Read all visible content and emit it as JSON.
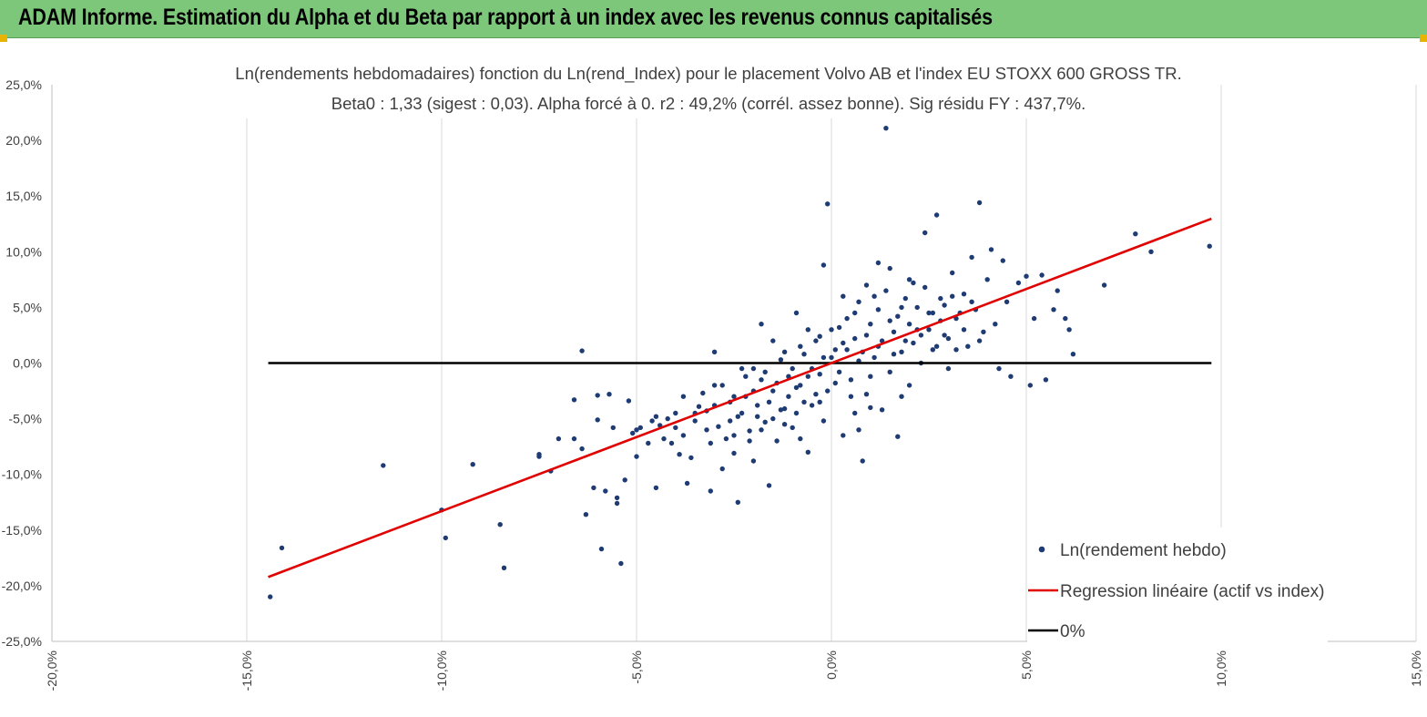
{
  "banner": {
    "title": "ADAM Informe. Estimation du Alpha et du Beta par rapport à un index avec les revenus connus capitalisés"
  },
  "colors": {
    "banner_bg": "#7dc77b",
    "points": "#1f3b73",
    "regression": "#e00000",
    "zero_line": "#000000",
    "grid": "#d9d9d9",
    "corner_marks": "#e9b400"
  },
  "chart_data": {
    "type": "scatter",
    "title_line1": "Ln(rendements hebdomadaires) fonction du Ln(rend_Index) pour le placement Volvo AB et l'index EU STOXX 600 GROSS TR.",
    "title_line2": "Beta0 : 1,33  (sigest : 0,03).  Alpha forcé à 0. r2 : 49,2% (corrél. assez bonne). Sig résidu FY : 437,7%.",
    "xlim": [
      -0.2,
      0.15
    ],
    "ylim": [
      -0.25,
      0.25
    ],
    "x_ticks": [
      -0.2,
      -0.15,
      -0.1,
      -0.05,
      0.0,
      0.05,
      0.1,
      0.15
    ],
    "y_ticks": [
      -0.25,
      -0.2,
      -0.15,
      -0.1,
      -0.05,
      0.0,
      0.05,
      0.1,
      0.15,
      0.2,
      0.25
    ],
    "x_tick_labels": [
      "-20,0%",
      "-15,0%",
      "-10,0%",
      "-5,0%",
      "0,0%",
      "5,0%",
      "10,0%",
      "15,0%"
    ],
    "y_tick_labels": [
      "-25,0%",
      "-20,0%",
      "-15,0%",
      "-10,0%",
      "-5,0%",
      "0,0%",
      "5,0%",
      "10,0%",
      "15,0%",
      "20,0%",
      "25,0%"
    ],
    "grid": "vertical",
    "legend_position": "bottom-right",
    "series": [
      {
        "name": "Ln(rendement hebdo)",
        "kind": "scatter",
        "points": [
          [
            -0.144,
            -0.21
          ],
          [
            -0.141,
            -0.166
          ],
          [
            -0.115,
            -0.092
          ],
          [
            -0.1,
            -0.132
          ],
          [
            -0.099,
            -0.157
          ],
          [
            -0.092,
            -0.091
          ],
          [
            -0.085,
            -0.145
          ],
          [
            -0.084,
            -0.184
          ],
          [
            -0.075,
            -0.082
          ],
          [
            -0.075,
            -0.084
          ],
          [
            -0.072,
            -0.097
          ],
          [
            -0.07,
            -0.068
          ],
          [
            -0.066,
            -0.033
          ],
          [
            -0.066,
            -0.068
          ],
          [
            -0.064,
            0.011
          ],
          [
            -0.064,
            -0.077
          ],
          [
            -0.063,
            -0.136
          ],
          [
            -0.061,
            -0.112
          ],
          [
            -0.06,
            -0.029
          ],
          [
            -0.06,
            -0.051
          ],
          [
            -0.059,
            -0.167
          ],
          [
            -0.058,
            -0.115
          ],
          [
            -0.057,
            -0.028
          ],
          [
            -0.056,
            -0.058
          ],
          [
            -0.055,
            -0.121
          ],
          [
            -0.055,
            -0.126
          ],
          [
            -0.054,
            -0.18
          ],
          [
            -0.053,
            -0.105
          ],
          [
            -0.052,
            -0.034
          ],
          [
            -0.051,
            -0.063
          ],
          [
            -0.05,
            -0.084
          ],
          [
            -0.049,
            -0.058
          ],
          [
            -0.047,
            -0.072
          ],
          [
            -0.046,
            -0.052
          ],
          [
            -0.045,
            -0.112
          ],
          [
            -0.044,
            -0.056
          ],
          [
            -0.043,
            -0.068
          ],
          [
            -0.042,
            -0.05
          ],
          [
            -0.041,
            -0.072
          ],
          [
            -0.04,
            -0.045
          ],
          [
            -0.039,
            -0.082
          ],
          [
            -0.038,
            -0.065
          ],
          [
            -0.037,
            -0.108
          ],
          [
            -0.036,
            -0.085
          ],
          [
            -0.035,
            -0.052
          ],
          [
            -0.034,
            -0.039
          ],
          [
            -0.033,
            -0.027
          ],
          [
            -0.032,
            -0.043
          ],
          [
            -0.031,
            -0.115
          ],
          [
            -0.031,
            -0.072
          ],
          [
            -0.03,
            -0.02
          ],
          [
            -0.029,
            -0.057
          ],
          [
            -0.028,
            -0.095
          ],
          [
            -0.027,
            -0.068
          ],
          [
            -0.026,
            -0.035
          ],
          [
            -0.025,
            -0.081
          ],
          [
            -0.024,
            -0.125
          ],
          [
            -0.024,
            -0.048
          ],
          [
            -0.023,
            -0.005
          ],
          [
            -0.022,
            -0.03
          ],
          [
            -0.021,
            -0.061
          ],
          [
            -0.02,
            -0.088
          ],
          [
            -0.019,
            -0.038
          ],
          [
            -0.018,
            -0.015
          ],
          [
            -0.017,
            -0.053
          ],
          [
            -0.016,
            -0.11
          ],
          [
            -0.015,
            -0.025
          ],
          [
            -0.014,
            -0.07
          ],
          [
            -0.013,
            0.003
          ],
          [
            -0.012,
            -0.041
          ],
          [
            -0.011,
            -0.012
          ],
          [
            -0.01,
            -0.058
          ],
          [
            -0.009,
            -0.022
          ],
          [
            -0.008,
            0.015
          ],
          [
            -0.007,
            -0.035
          ],
          [
            -0.006,
            -0.08
          ],
          [
            -0.005,
            -0.005
          ],
          [
            -0.004,
            -0.028
          ],
          [
            -0.003,
            0.024
          ],
          [
            -0.002,
            -0.052
          ],
          [
            -0.001,
            0.143
          ],
          [
            0.0,
            0.005
          ],
          [
            0.001,
            -0.018
          ],
          [
            0.002,
            0.032
          ],
          [
            0.003,
            -0.065
          ],
          [
            0.004,
            0.012
          ],
          [
            0.005,
            -0.03
          ],
          [
            0.006,
            0.045
          ],
          [
            0.007,
            0.002
          ],
          [
            0.008,
            -0.088
          ],
          [
            0.009,
            0.025
          ],
          [
            0.01,
            -0.012
          ],
          [
            0.011,
            0.06
          ],
          [
            0.012,
            0.015
          ],
          [
            0.013,
            -0.042
          ],
          [
            0.014,
            0.211
          ],
          [
            0.015,
            0.038
          ],
          [
            0.016,
            0.008
          ],
          [
            0.017,
            -0.066
          ],
          [
            0.018,
            0.05
          ],
          [
            0.019,
            0.02
          ],
          [
            0.02,
            -0.02
          ],
          [
            0.021,
            0.072
          ],
          [
            0.022,
            0.03
          ],
          [
            0.023,
            0.0
          ],
          [
            0.024,
            0.117
          ],
          [
            0.025,
            0.045
          ],
          [
            0.026,
            0.012
          ],
          [
            0.027,
            0.133
          ],
          [
            0.028,
            0.058
          ],
          [
            0.029,
            0.025
          ],
          [
            0.03,
            -0.005
          ],
          [
            0.031,
            0.081
          ],
          [
            0.032,
            0.04
          ],
          [
            0.034,
            0.062
          ],
          [
            0.035,
            0.015
          ],
          [
            0.036,
            0.095
          ],
          [
            0.037,
            0.048
          ],
          [
            0.038,
            0.144
          ],
          [
            0.039,
            0.028
          ],
          [
            0.04,
            0.075
          ],
          [
            0.041,
            0.102
          ],
          [
            0.042,
            0.035
          ],
          [
            0.043,
            -0.005
          ],
          [
            0.044,
            0.092
          ],
          [
            0.045,
            0.055
          ],
          [
            0.046,
            -0.012
          ],
          [
            0.048,
            0.072
          ],
          [
            0.05,
            0.078
          ],
          [
            0.051,
            -0.02
          ],
          [
            0.052,
            0.04
          ],
          [
            0.054,
            0.079
          ],
          [
            0.055,
            -0.015
          ],
          [
            0.057,
            0.048
          ],
          [
            0.058,
            0.065
          ],
          [
            0.06,
            0.04
          ],
          [
            0.061,
            0.03
          ],
          [
            0.062,
            0.008
          ],
          [
            0.07,
            0.07
          ],
          [
            0.078,
            0.116
          ],
          [
            0.082,
            0.1
          ],
          [
            0.097,
            0.105
          ],
          [
            -0.05,
            -0.06
          ],
          [
            -0.045,
            -0.048
          ],
          [
            -0.04,
            -0.058
          ],
          [
            -0.038,
            -0.03
          ],
          [
            -0.035,
            -0.045
          ],
          [
            -0.032,
            -0.06
          ],
          [
            -0.03,
            -0.038
          ],
          [
            -0.028,
            -0.02
          ],
          [
            -0.026,
            -0.052
          ],
          [
            -0.025,
            -0.03
          ],
          [
            -0.023,
            -0.045
          ],
          [
            -0.022,
            -0.012
          ],
          [
            -0.021,
            -0.07
          ],
          [
            -0.02,
            -0.025
          ],
          [
            -0.019,
            -0.048
          ],
          [
            -0.018,
            -0.06
          ],
          [
            -0.017,
            -0.008
          ],
          [
            -0.016,
            -0.035
          ],
          [
            -0.015,
            -0.05
          ],
          [
            -0.014,
            -0.018
          ],
          [
            -0.013,
            -0.042
          ],
          [
            -0.012,
            0.01
          ],
          [
            -0.011,
            -0.03
          ],
          [
            -0.01,
            -0.005
          ],
          [
            -0.009,
            -0.045
          ],
          [
            -0.008,
            -0.02
          ],
          [
            -0.007,
            0.008
          ],
          [
            -0.006,
            -0.012
          ],
          [
            -0.005,
            -0.038
          ],
          [
            -0.004,
            0.02
          ],
          [
            -0.003,
            -0.01
          ],
          [
            -0.002,
            0.005
          ],
          [
            -0.001,
            -0.025
          ],
          [
            0.0,
            0.03
          ],
          [
            0.001,
            0.012
          ],
          [
            0.002,
            -0.008
          ],
          [
            0.003,
            0.018
          ],
          [
            0.004,
            0.04
          ],
          [
            0.005,
            -0.015
          ],
          [
            0.006,
            0.022
          ],
          [
            0.007,
            0.055
          ],
          [
            0.008,
            0.01
          ],
          [
            0.009,
            -0.028
          ],
          [
            0.01,
            0.035
          ],
          [
            0.011,
            0.005
          ],
          [
            0.012,
            0.048
          ],
          [
            0.013,
            0.02
          ],
          [
            0.014,
            0.065
          ],
          [
            0.015,
            -0.008
          ],
          [
            0.016,
            0.028
          ],
          [
            0.017,
            0.042
          ],
          [
            0.018,
            0.01
          ],
          [
            0.019,
            0.058
          ],
          [
            0.02,
            0.035
          ],
          [
            0.021,
            0.018
          ],
          [
            0.022,
            0.05
          ],
          [
            0.023,
            0.025
          ],
          [
            0.024,
            0.068
          ],
          [
            0.025,
            0.03
          ],
          [
            0.026,
            0.045
          ],
          [
            0.027,
            0.015
          ],
          [
            0.028,
            0.038
          ],
          [
            0.029,
            0.052
          ],
          [
            0.03,
            0.022
          ],
          [
            0.031,
            0.06
          ],
          [
            0.032,
            0.012
          ],
          [
            0.033,
            0.045
          ],
          [
            0.034,
            0.03
          ],
          [
            0.036,
            0.055
          ],
          [
            0.038,
            0.02
          ],
          [
            -0.003,
            -0.035
          ],
          [
            -0.006,
            0.03
          ],
          [
            0.009,
            0.07
          ],
          [
            -0.012,
            -0.055
          ],
          [
            0.006,
            -0.045
          ],
          [
            -0.02,
            -0.005
          ],
          [
            0.015,
            0.085
          ],
          [
            -0.009,
            0.045
          ],
          [
            0.003,
            0.06
          ],
          [
            -0.015,
            0.02
          ],
          [
            0.01,
            -0.04
          ],
          [
            -0.025,
            -0.065
          ],
          [
            0.018,
            -0.03
          ],
          [
            -0.002,
            0.088
          ],
          [
            0.007,
            -0.06
          ],
          [
            -0.03,
            0.01
          ],
          [
            0.02,
            0.075
          ],
          [
            -0.008,
            -0.068
          ],
          [
            0.012,
            0.09
          ],
          [
            -0.018,
            0.035
          ]
        ]
      },
      {
        "name": "Regression linéaire (actif vs index)",
        "kind": "line",
        "slope": 1.33,
        "x_range": [
          -0.1445,
          0.0975
        ]
      },
      {
        "name": "0%",
        "kind": "line",
        "y": 0.0,
        "x_range": [
          -0.1445,
          0.0975
        ]
      }
    ]
  }
}
